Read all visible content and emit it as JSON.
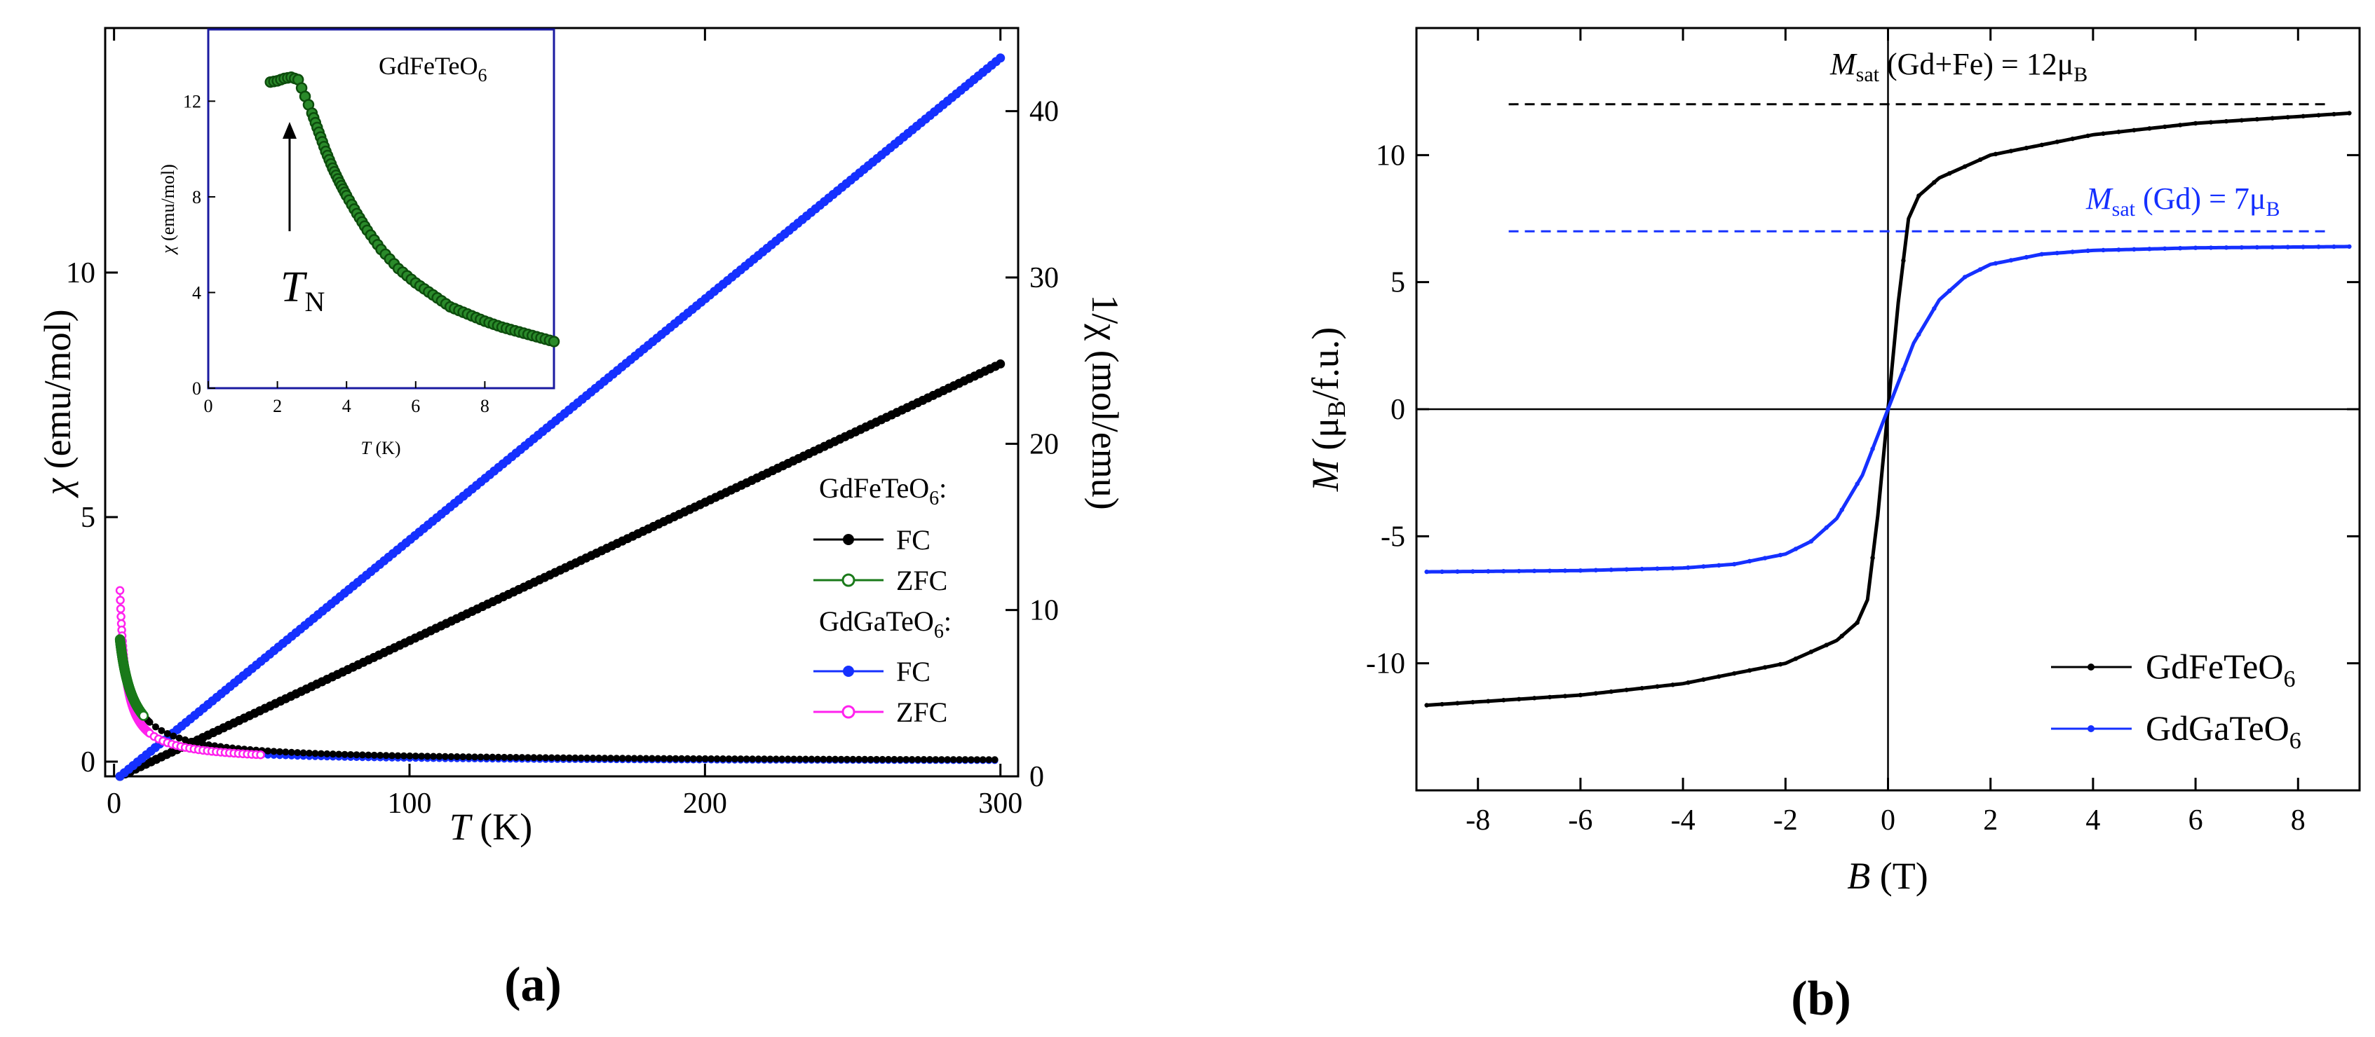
{
  "panel_labels": {
    "a": "(a)",
    "b": "(b)"
  },
  "colors": {
    "black": "#000000",
    "green": "#1a7a1a",
    "blue": "#1530ff",
    "magenta": "#ff22ee",
    "blue_dash": "#1530ff"
  },
  "chart_data": [
    {
      "id": "a_main",
      "type": "scatter",
      "xlabel_sym": "T",
      "xlabel_unit": " (K)",
      "ylabel_sym": "χ",
      "ylabel_unit": " (emu/mol)",
      "y2label": "1/χ (mol/emu)",
      "xlim": [
        -3,
        306
      ],
      "ylim": [
        -0.3,
        15
      ],
      "y2lim": [
        0,
        45
      ],
      "xticks": [
        0,
        100,
        200,
        300
      ],
      "yticks": [
        0,
        5,
        10
      ],
      "y2ticks": [
        0,
        10,
        20,
        30,
        40
      ],
      "xtick_labels": [
        "0",
        "100",
        "200",
        "300"
      ],
      "ytick_labels": [
        "0",
        "5",
        "10"
      ],
      "y2tick_labels": [
        "0",
        "10",
        "20",
        "30",
        "40"
      ],
      "legend": {
        "group1_base": "GdFeTeO",
        "group1_sub": "6",
        "group1_colon": ":",
        "group2_base": "GdGaTeO",
        "group2_sub": "6",
        "group2_colon": ":",
        "entries": [
          "FC",
          "ZFC",
          "FC",
          "ZFC"
        ]
      },
      "series": [
        {
          "name": "GdFeTeO6 FC χ",
          "axis": "y",
          "C": 12.0,
          "theta": -2.8,
          "x_range": [
            2,
            300
          ],
          "color": "#000000"
        },
        {
          "name": "GdFeTeO6 ZFC χ",
          "axis": "y",
          "C": 12.0,
          "theta": -2.8,
          "x_range": [
            2,
            10
          ],
          "color": "#1a7a1a"
        },
        {
          "name": "GdGaTeO6 FC χ",
          "axis": "y",
          "C": 7.0,
          "theta": 0,
          "x_range": [
            2,
            300
          ],
          "color": "#1530ff"
        },
        {
          "name": "GdGaTeO6 ZFC χ",
          "axis": "y",
          "C": 7.0,
          "theta": 0,
          "x_range": [
            2,
            50
          ],
          "color": "#ff22ee"
        },
        {
          "name": "GdFeTeO6 1/χ",
          "axis": "y2",
          "x": [
            2,
            300
          ],
          "y": [
            0,
            24.8
          ],
          "color": "#000000"
        },
        {
          "name": "GdGaTeO6 1/χ",
          "axis": "y2",
          "x": [
            2,
            300
          ],
          "y": [
            0,
            43.2
          ],
          "color": "#1530ff"
        }
      ]
    },
    {
      "id": "a_inset",
      "type": "scatter",
      "title_base": "GdFeTeO",
      "title_sub": "6",
      "xlabel_sym": "T",
      "xlabel_unit": " (K)",
      "ylabel_sym": "χ",
      "ylabel_unit": " (emu/mol)",
      "xlim": [
        0,
        10
      ],
      "ylim": [
        0,
        15
      ],
      "xticks": [
        0,
        2,
        4,
        6,
        8
      ],
      "yticks": [
        0,
        4,
        8,
        12
      ],
      "xtick_labels": [
        "0",
        "2",
        "4",
        "6",
        "8"
      ],
      "ytick_labels": [
        "0",
        "4",
        "8",
        "12"
      ],
      "annotation_base": "T",
      "annotation_sub": "N",
      "points": [
        [
          1.8,
          12.8
        ],
        [
          2.0,
          12.85
        ],
        [
          2.2,
          12.95
        ],
        [
          2.4,
          13.0
        ],
        [
          2.6,
          12.9
        ],
        [
          2.8,
          12.2
        ],
        [
          3.0,
          11.5
        ],
        [
          3.2,
          10.7
        ],
        [
          3.4,
          9.9
        ],
        [
          3.6,
          9.2
        ],
        [
          3.8,
          8.6
        ],
        [
          4.0,
          8.05
        ],
        [
          4.3,
          7.3
        ],
        [
          4.6,
          6.6
        ],
        [
          5.0,
          5.8
        ],
        [
          5.5,
          5.0
        ],
        [
          6.0,
          4.4
        ],
        [
          6.5,
          3.9
        ],
        [
          7.0,
          3.4
        ],
        [
          7.5,
          3.1
        ],
        [
          8.0,
          2.8
        ],
        [
          8.5,
          2.55
        ],
        [
          9.0,
          2.35
        ],
        [
          9.5,
          2.15
        ],
        [
          10.0,
          1.95
        ]
      ]
    },
    {
      "id": "b_main",
      "type": "line",
      "xlabel_sym": "B",
      "xlabel_unit": " (T)",
      "ylabel_sym": "M",
      "ylabel_unit_pre": " (μ",
      "ylabel_unit_sub": "B",
      "ylabel_unit_post": "/f.u.)",
      "xlim": [
        -9.2,
        9.2
      ],
      "ylim": [
        -15,
        15
      ],
      "xticks": [
        -8,
        -6,
        -4,
        -2,
        0,
        2,
        4,
        6,
        8
      ],
      "yticks": [
        -10,
        -5,
        0,
        5,
        10
      ],
      "xtick_labels": [
        "-8",
        "-6",
        "-4",
        "-2",
        "0",
        "2",
        "4",
        "6",
        "8"
      ],
      "ytick_labels": [
        "-10",
        "-5",
        "0",
        "5",
        "10"
      ],
      "reference_lines": [
        {
          "y": 12,
          "color": "#000000",
          "label_base": "M",
          "label_sub": "sat",
          "label_rest": " (Gd+Fe) = 12μ",
          "label_sub2": "B"
        },
        {
          "y": 7,
          "color": "#1530ff",
          "label_base": "M",
          "label_sub": "sat",
          "label_rest": " (Gd) = 7μ",
          "label_sub2": "B"
        }
      ],
      "series": [
        {
          "name_base": "GdFeTeO",
          "name_sub": "6",
          "color": "#000000",
          "anchors": [
            [
              0,
              0
            ],
            [
              0.2,
              4.2
            ],
            [
              0.4,
              7.5
            ],
            [
              0.6,
              8.4
            ],
            [
              1,
              9.1
            ],
            [
              2,
              10.0
            ],
            [
              4,
              10.8
            ],
            [
              6,
              11.25
            ],
            [
              9,
              11.65
            ]
          ]
        },
        {
          "name_base": "GdGaTeO",
          "name_sub": "6",
          "color": "#1530ff",
          "anchors": [
            [
              0,
              0
            ],
            [
              0.5,
              2.6
            ],
            [
              1,
              4.3
            ],
            [
              1.5,
              5.2
            ],
            [
              2,
              5.7
            ],
            [
              3,
              6.1
            ],
            [
              4,
              6.25
            ],
            [
              6,
              6.35
            ],
            [
              9,
              6.4
            ]
          ]
        }
      ]
    }
  ]
}
